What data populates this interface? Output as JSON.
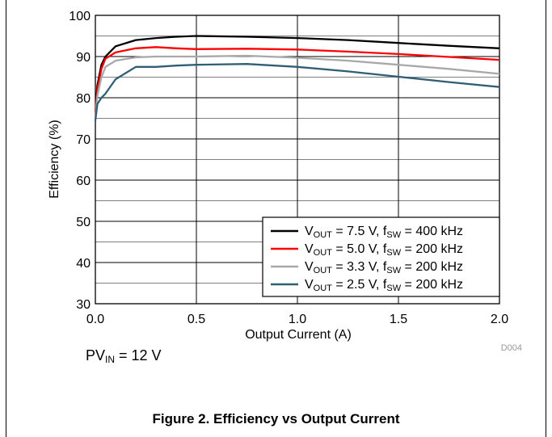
{
  "chart_data": {
    "type": "line",
    "xlabel": "Output Current (A)",
    "ylabel": "Efficiency (%)",
    "xlim": [
      0,
      2.0
    ],
    "ylim": [
      30,
      100
    ],
    "xticks": [
      "0.0",
      "0.5",
      "1.0",
      "1.5",
      "2.0"
    ],
    "yticks": [
      "30",
      "40",
      "50",
      "60",
      "70",
      "80",
      "90",
      "100"
    ],
    "grid": true,
    "legend_position": "bottom-right",
    "graph_id": "D004",
    "series": [
      {
        "name": "VOUT = 7.5 V, fSW = 400 kHz",
        "label_parts": [
          "V",
          "OUT",
          " = 7.5 V, f",
          "SW",
          " = 400 kHz"
        ],
        "color": "#000000",
        "x": [
          0.0,
          0.01,
          0.03,
          0.05,
          0.1,
          0.2,
          0.3,
          0.4,
          0.5,
          0.75,
          1.0,
          1.25,
          1.5,
          1.75,
          2.0
        ],
        "y": [
          76.5,
          83.0,
          88.0,
          90.0,
          92.5,
          94.0,
          94.5,
          94.8,
          95.0,
          94.8,
          94.5,
          94.0,
          93.3,
          92.6,
          92.0
        ]
      },
      {
        "name": "VOUT = 5.0 V, fSW = 200 kHz",
        "label_parts": [
          "V",
          "OUT",
          " = 5.0 V, f",
          "SW",
          " = 200 kHz"
        ],
        "color": "#ff0000",
        "x": [
          0.0,
          0.01,
          0.03,
          0.05,
          0.1,
          0.2,
          0.3,
          0.4,
          0.5,
          0.75,
          1.0,
          1.25,
          1.5,
          1.75,
          2.0
        ],
        "y": [
          76.0,
          82.0,
          87.0,
          89.5,
          91.0,
          92.0,
          92.3,
          92.0,
          91.8,
          91.9,
          91.7,
          91.2,
          90.6,
          89.9,
          89.2
        ]
      },
      {
        "name": "VOUT = 3.3 V, fSW = 200 kHz",
        "label_parts": [
          "V",
          "OUT",
          " = 3.3 V, f",
          "SW",
          " = 200 kHz"
        ],
        "color": "#a8a8a8",
        "x": [
          0.0,
          0.01,
          0.03,
          0.05,
          0.1,
          0.2,
          0.3,
          0.4,
          0.5,
          0.75,
          1.0,
          1.25,
          1.5,
          1.75,
          2.0
        ],
        "y": [
          75.5,
          80.5,
          85.0,
          87.5,
          89.0,
          89.8,
          90.0,
          90.0,
          90.0,
          90.2,
          89.7,
          89.0,
          88.0,
          87.0,
          85.8
        ]
      },
      {
        "name": "VOUT = 2.5 V, fSW = 200 kHz",
        "label_parts": [
          "V",
          "OUT",
          " = 2.5 V, f",
          "SW",
          " = 200 kHz"
        ],
        "color": "#2f5f74",
        "x": [
          0.0,
          0.01,
          0.03,
          0.05,
          0.1,
          0.2,
          0.3,
          0.4,
          0.5,
          0.75,
          1.0,
          1.25,
          1.5,
          1.75,
          2.0
        ],
        "y": [
          74.5,
          78.5,
          80.0,
          81.0,
          84.5,
          87.5,
          87.5,
          87.8,
          88.0,
          88.2,
          87.5,
          86.4,
          85.1,
          83.8,
          82.6
        ]
      }
    ]
  },
  "condition": {
    "main": "PV",
    "sub": "IN",
    "rest": " = 12 V"
  },
  "caption": "Figure 2. Efficiency vs Output Current"
}
